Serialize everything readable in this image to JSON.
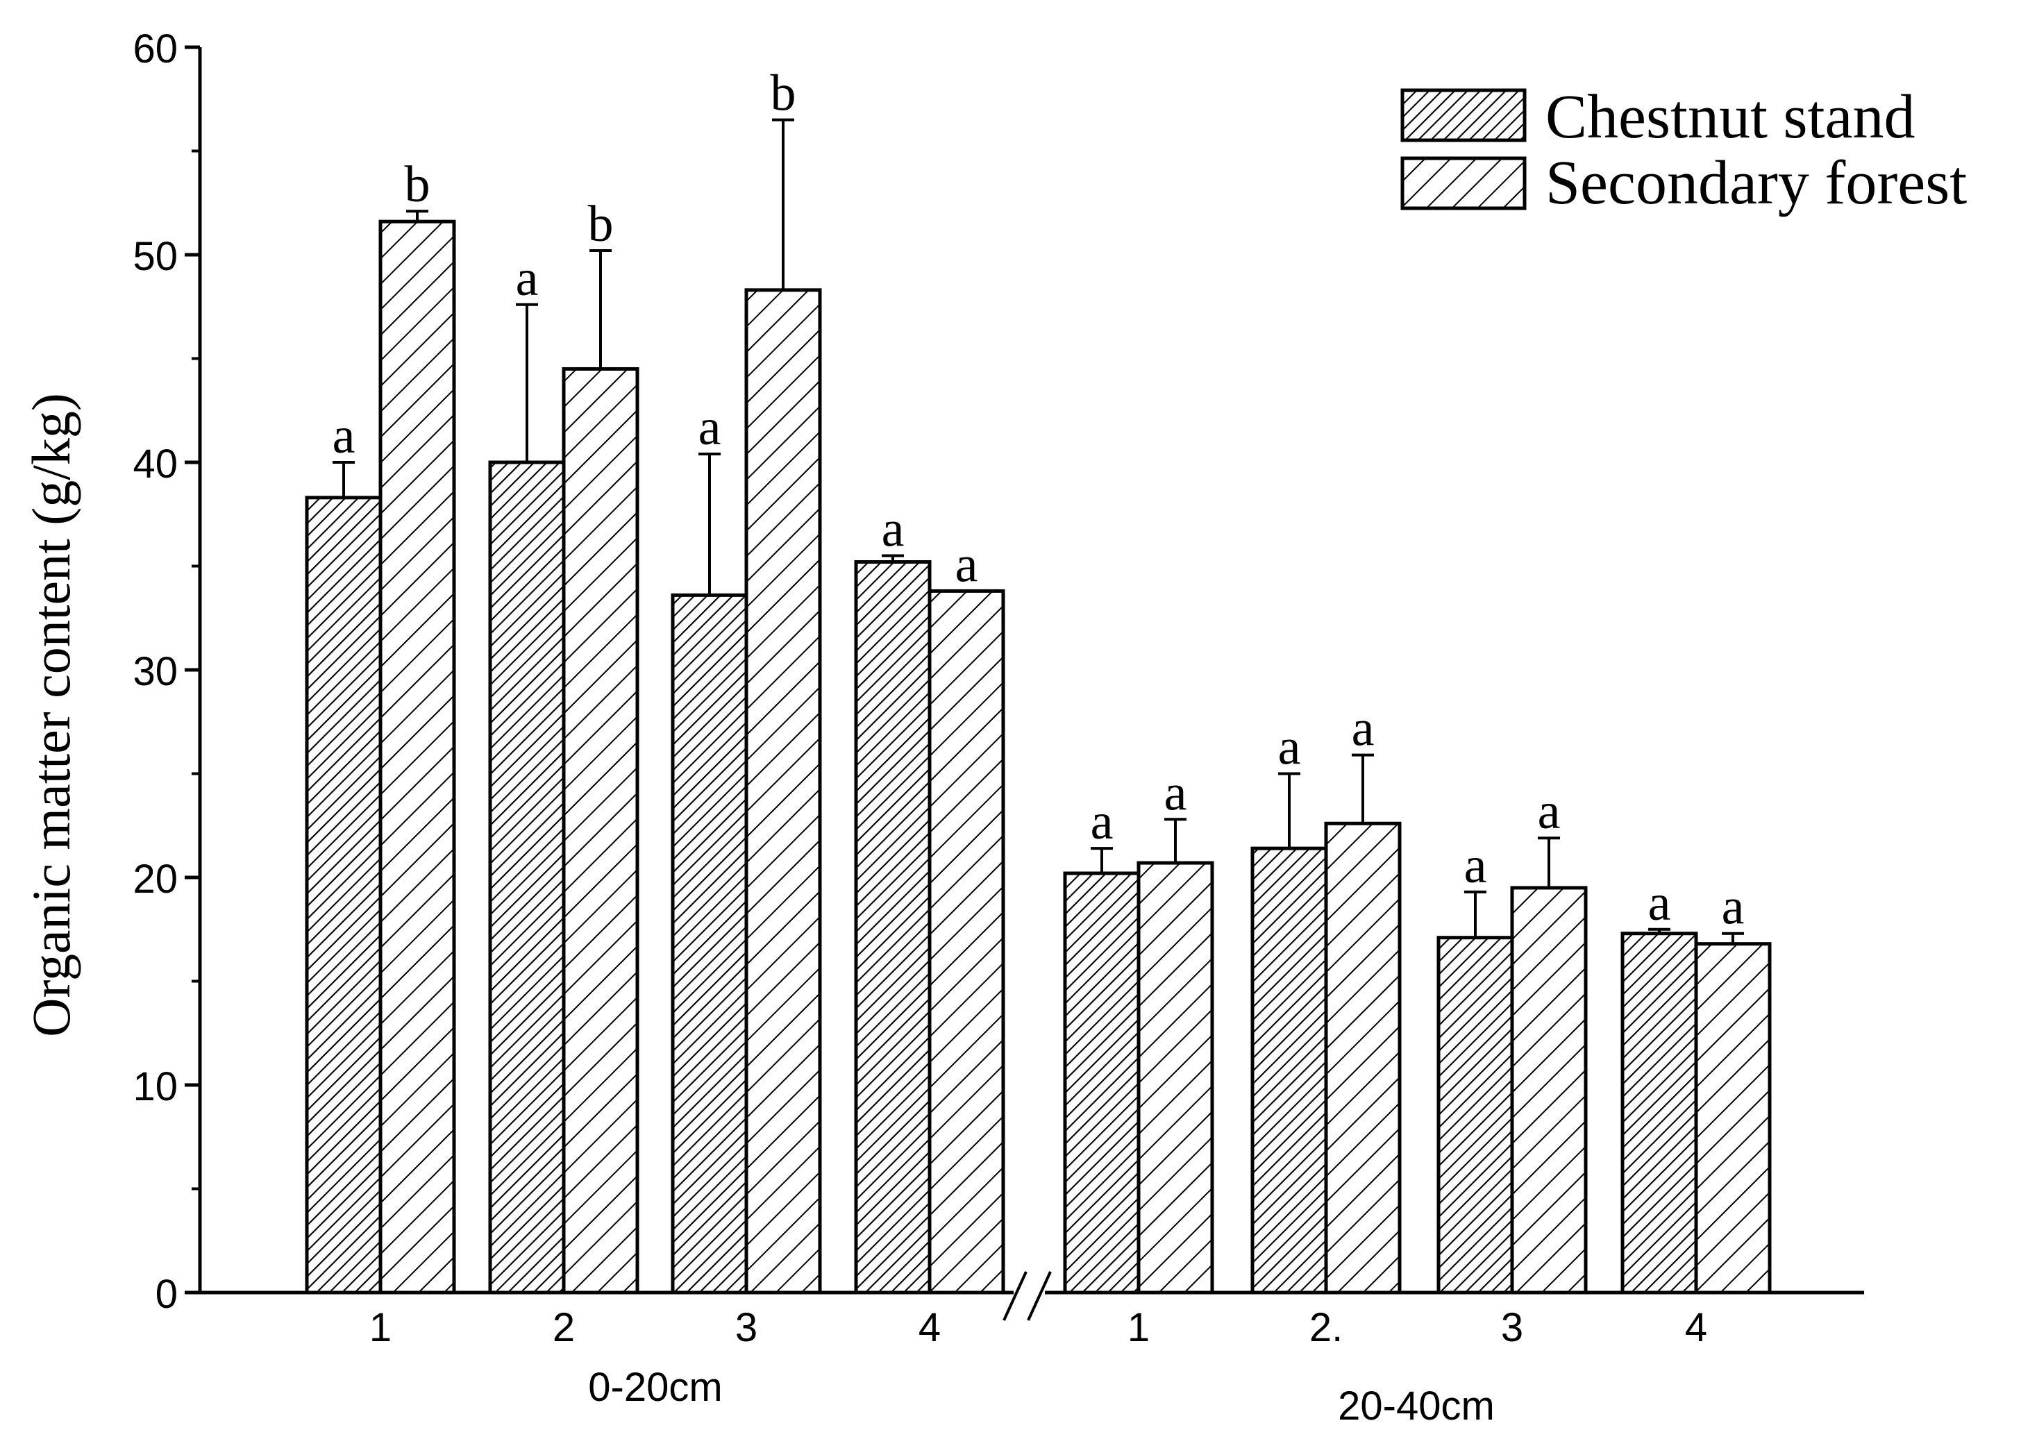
{
  "chart_data": {
    "type": "bar",
    "ylabel": "Organic matter content (g/kg)",
    "ylim": [
      0,
      60
    ],
    "yticks": [
      0,
      10,
      20,
      30,
      40,
      50,
      60
    ],
    "axis_break": true,
    "groups": [
      {
        "label": "0-20cm",
        "categories": [
          "1",
          "2",
          "3",
          "4"
        ],
        "series": [
          {
            "name": "Chestnut stand",
            "values": [
              38.3,
              40.0,
              33.6,
              35.2
            ],
            "errors": [
              1.7,
              7.6,
              6.8,
              0.3
            ],
            "letters": [
              "a",
              "a",
              "a",
              "a"
            ]
          },
          {
            "name": "Secondary forest",
            "values": [
              51.6,
              44.5,
              48.3,
              33.8
            ],
            "errors": [
              0.5,
              5.7,
              8.2,
              0.0
            ],
            "letters": [
              "b",
              "b",
              "b",
              "a"
            ]
          }
        ]
      },
      {
        "label": "20-40cm",
        "categories": [
          "1",
          "2.",
          "3",
          "4"
        ],
        "series": [
          {
            "name": "Chestnut stand",
            "values": [
              20.2,
              21.4,
              17.1,
              17.3
            ],
            "errors": [
              1.2,
              3.6,
              2.2,
              0.2
            ],
            "letters": [
              "a",
              "a",
              "a",
              "a"
            ]
          },
          {
            "name": "Secondary forest",
            "values": [
              20.7,
              22.6,
              19.5,
              16.8
            ],
            "errors": [
              2.1,
              3.3,
              2.4,
              0.5
            ],
            "letters": [
              "a",
              "a",
              "a",
              "a"
            ]
          }
        ]
      }
    ],
    "legend": {
      "position": "top-right",
      "entries": [
        "Chestnut stand",
        "Secondary forest"
      ]
    },
    "colors": {
      "bar_fill": "#ffffff",
      "stroke": "#000000"
    }
  }
}
